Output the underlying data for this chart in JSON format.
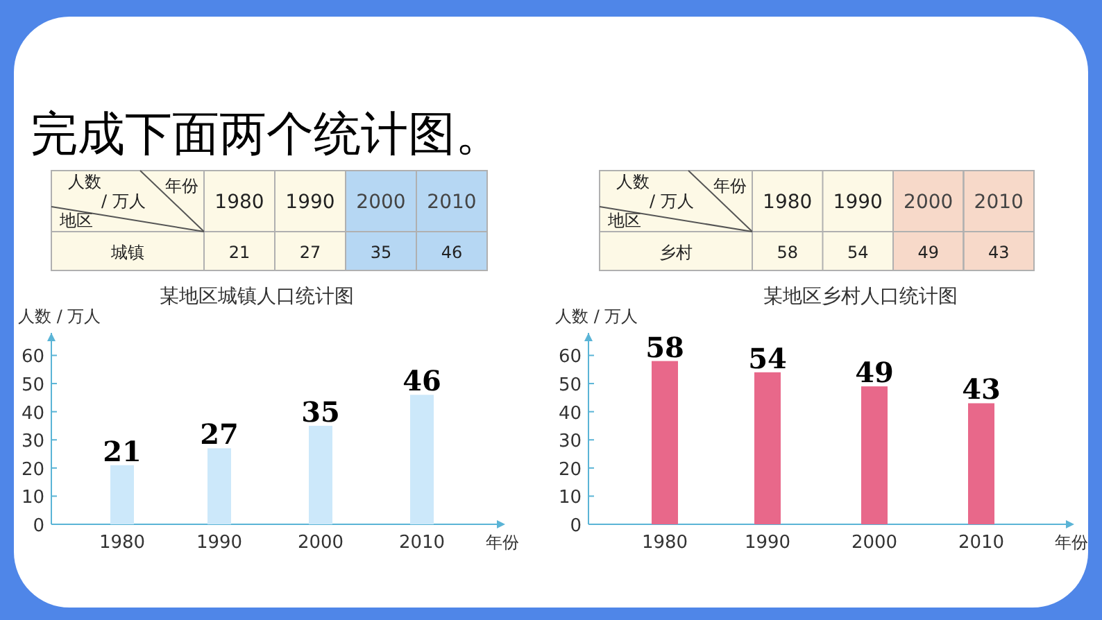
{
  "chart_data": [
    {
      "type": "other",
      "title": "完成下面两个统计图。"
    },
    {
      "type": "bar",
      "title": "某地区城镇人口统计图",
      "xlabel": "年份",
      "ylabel": "人数 / 万人",
      "categories": [
        "1980",
        "1990",
        "2000",
        "2010"
      ],
      "values": [
        21,
        27,
        35,
        46
      ],
      "color": "#cce8fa",
      "ylim": [
        0,
        68
      ],
      "yticks": [
        0,
        10,
        20,
        30,
        40,
        50,
        60
      ],
      "data_labels": true,
      "annotations": [
        "人数",
        "/ 万人",
        "年份",
        "地区",
        "城镇",
        "21",
        "27",
        "35",
        "46"
      ]
    },
    {
      "type": "bar",
      "title": "某地区乡村人口统计图",
      "xlabel": "年份",
      "ylabel": "人数 / 万人",
      "categories": [
        "1980",
        "1990",
        "2000",
        "2010"
      ],
      "values": [
        58,
        54,
        49,
        43
      ],
      "color": "#e8688a",
      "ylim": [
        0,
        68
      ],
      "yticks": [
        0,
        10,
        20,
        30,
        40,
        50,
        60
      ],
      "data_labels": true,
      "annotations": [
        "人数",
        "/ 万人",
        "年份",
        "地区",
        "乡村",
        "58",
        "54",
        "49",
        "43"
      ]
    }
  ]
}
